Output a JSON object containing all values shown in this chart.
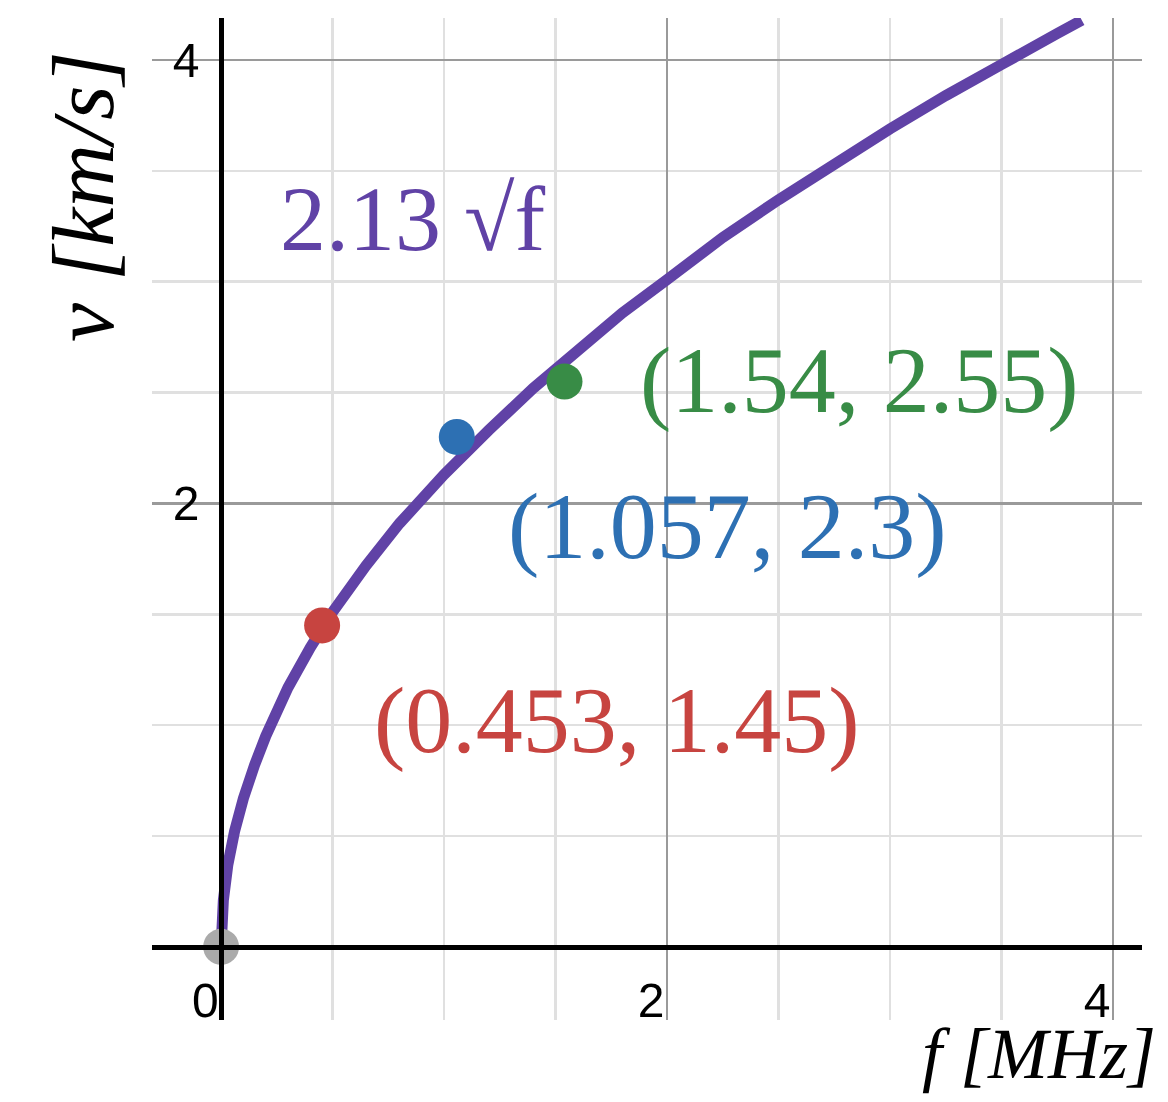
{
  "chart_data": {
    "type": "scatter",
    "xlabel": "f [MHz]",
    "ylabel": "v [km/s]",
    "xlim": [
      -0.31,
      4.13
    ],
    "ylim": [
      -0.33,
      4.19
    ],
    "xticks": [
      0,
      {
        "value": 0.5,
        "label": null
      },
      {
        "value": 1,
        "label": null
      },
      {
        "value": 1.5,
        "label": null
      },
      2,
      {
        "value": 2.5,
        "label": null
      },
      {
        "value": 3,
        "label": null
      },
      {
        "value": 3.5,
        "label": null
      },
      4
    ],
    "yticks": [
      {
        "value": 0,
        "label": null
      },
      {
        "value": 0.5,
        "label": null
      },
      {
        "value": 1,
        "label": null
      },
      {
        "value": 1.5,
        "label": null
      },
      2,
      {
        "value": 2.5,
        "label": null
      },
      {
        "value": 3,
        "label": null
      },
      {
        "value": 3.5,
        "label": null
      },
      4
    ],
    "grid": true,
    "line_style": "solid",
    "series": [
      {
        "type": "line",
        "name": "2.13 √f",
        "color": "#6042a6",
        "x": [
          0,
          0.01,
          0.03,
          0.06,
          0.1,
          0.15,
          0.2,
          0.3,
          0.4,
          0.5,
          0.65,
          0.8,
          1,
          1.2,
          1.4,
          1.6,
          1.8,
          2,
          2.25,
          2.5,
          2.75,
          3,
          3.25,
          3.5,
          3.75,
          3.86
        ],
        "values": [
          0,
          0.21,
          0.37,
          0.52,
          0.67,
          0.82,
          0.95,
          1.17,
          1.35,
          1.51,
          1.72,
          1.91,
          2.13,
          2.33,
          2.52,
          2.69,
          2.86,
          3.01,
          3.2,
          3.37,
          3.53,
          3.69,
          3.84,
          3.98,
          4.12,
          4.18
        ]
      },
      {
        "marker": "circle",
        "colors": [
          "#aaaaaa",
          "#c74440",
          "#2d70b3",
          "#388c46"
        ],
        "x": [
          0,
          0.453,
          1.057,
          1.54
        ],
        "values": [
          0,
          1.45,
          2.3,
          2.55
        ],
        "value_labels": [
          null,
          "(0.453, 1.45)",
          "(1.057, 2.3)",
          "(1.54, 2.55)"
        ]
      }
    ]
  }
}
